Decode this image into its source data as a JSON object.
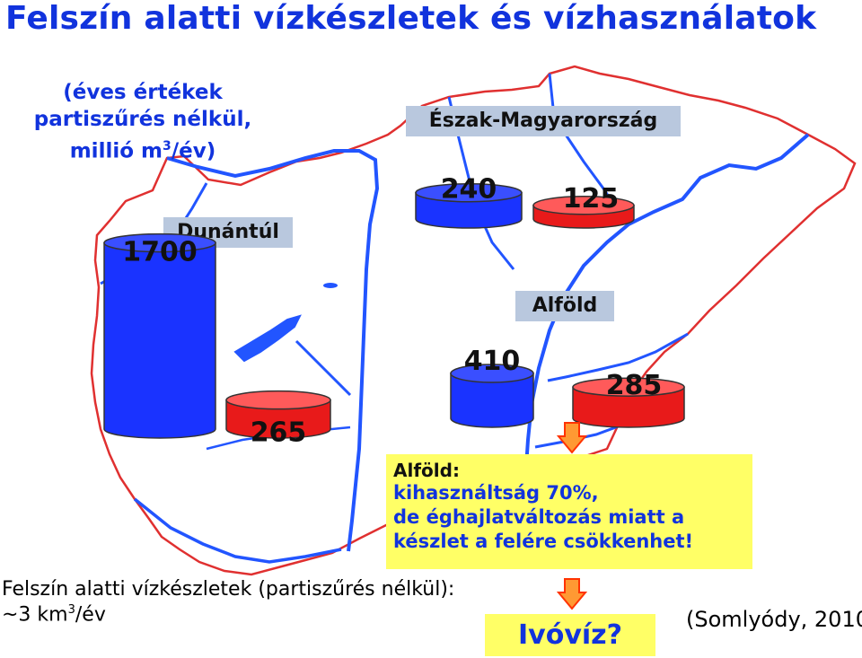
{
  "title": "Felszín alatti vízkészletek és vízhasználatok",
  "subtitle": {
    "line1": "(éves értékek partiszűrés nélkül,",
    "line2_pre": "millió m",
    "line2_sup": "3",
    "line2_post": "/év)"
  },
  "regions": [
    {
      "label": "Dunántúl",
      "resource": 1700,
      "use": 265
    },
    {
      "label": "Észak-Magyarország",
      "resource": 240,
      "use": 125
    },
    {
      "label": "Alföld",
      "resource": 410,
      "use": 285
    }
  ],
  "colors": {
    "resource": "#1a33ff",
    "use": "#e81a1a",
    "title": "#1133dd",
    "highlight": "#ffff66",
    "arrow": "#ff3300",
    "river": "#2255ff",
    "border": "#e03030"
  },
  "alfold_box": {
    "heading": "Alföld:",
    "line1": "kihasználtság 70%,",
    "line2": "de éghajlatváltozás miatt a",
    "line3": "készlet a felére csökkenhet!"
  },
  "note": {
    "line1": "Felszín alatti vízkészletek (partiszűrés nélkül):",
    "line2_pre": "~3 km",
    "line2_sup": "3",
    "line2_post": "/év"
  },
  "drinking_water": "Ivóvíz?",
  "citation": "(Somlyódy, 2010)",
  "icons": [
    "down-arrow-icon",
    "down-arrow-icon"
  ]
}
